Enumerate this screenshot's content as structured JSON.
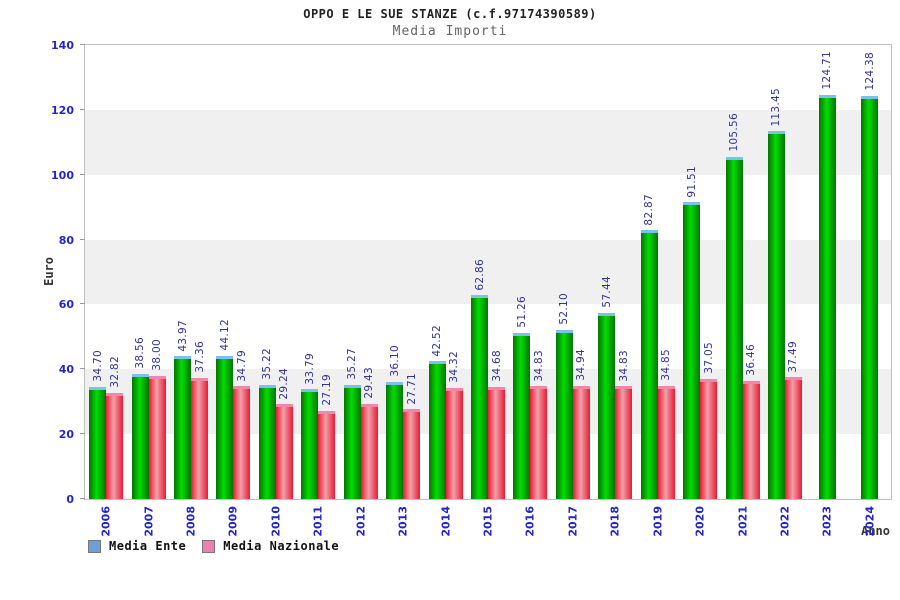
{
  "header": {
    "title": "OPPO E LE SUE STANZE (c.f.97174390589)",
    "subtitle": "Media Importi"
  },
  "axes": {
    "y_label": "Euro",
    "x_label": "Anno",
    "y_ticks": [
      0,
      20,
      40,
      60,
      80,
      100,
      120,
      140
    ],
    "y_max": 140
  },
  "legend": {
    "items": [
      {
        "label": "Media Ente",
        "swatch_color": "#6ca0d8"
      },
      {
        "label": "Media Nazionale",
        "swatch_color": "#ee7fb2"
      }
    ]
  },
  "colors": {
    "band_gray": "#f0f0f0",
    "plot_border": "#c0c0c0",
    "axis_label_blue": "#2424cc",
    "value_label_navy": "#333399",
    "bar_green_edge": "#067206",
    "bar_green_mid": "#00de00",
    "bar_green_cap": "#7cc0ee",
    "bar_red_edge": "#ea1a33",
    "bar_red_mid": "#f0a0aa",
    "bar_red_cap": "#f285ab"
  },
  "chart_data": {
    "type": "bar",
    "title": "OPPO E LE SUE STANZE (c.f.97174390589)",
    "subtitle": "Media Importi",
    "xlabel": "Anno",
    "ylabel": "Euro",
    "ylim": [
      0,
      140
    ],
    "grid": "alternating horizontal gray bands every 20 units (20-40, 60-80, 100-120)",
    "legend_position": "bottom-left",
    "categories": [
      "2006",
      "2007",
      "2008",
      "2009",
      "2010",
      "2011",
      "2012",
      "2013",
      "2014",
      "2015",
      "2016",
      "2017",
      "2018",
      "2019",
      "2020",
      "2021",
      "2022",
      "2023",
      "2024"
    ],
    "series": [
      {
        "name": "Media Ente",
        "bar_color": "green",
        "values": [
          34.7,
          38.56,
          43.97,
          44.12,
          35.22,
          33.79,
          35.27,
          36.1,
          42.52,
          62.86,
          51.26,
          52.1,
          57.44,
          82.87,
          91.51,
          105.56,
          113.45,
          124.71,
          124.38
        ],
        "labels": [
          "34.70",
          "38.56",
          "43.97",
          "44.12",
          "35.22",
          "33.79",
          "35.27",
          "36.10",
          "42.52",
          "62.86",
          "51.26",
          "52.10",
          "57.44",
          "82.87",
          "91.51",
          "105.56",
          "113.45",
          "124.71",
          "124.38"
        ]
      },
      {
        "name": "Media Nazionale",
        "bar_color": "red",
        "values": [
          32.82,
          38.0,
          37.36,
          34.79,
          29.24,
          27.19,
          29.43,
          27.71,
          34.32,
          34.68,
          34.83,
          34.94,
          34.83,
          34.85,
          37.05,
          36.46,
          37.49,
          null,
          null
        ],
        "labels": [
          "32.82",
          "38.00",
          "37.36",
          "34.79",
          "29.24",
          "27.19",
          "29.43",
          "27.71",
          "34.32",
          "34.68",
          "34.83",
          "34.94",
          "34.83",
          "34.85",
          "37.05",
          "36.46",
          "37.49",
          null,
          null
        ]
      }
    ]
  }
}
